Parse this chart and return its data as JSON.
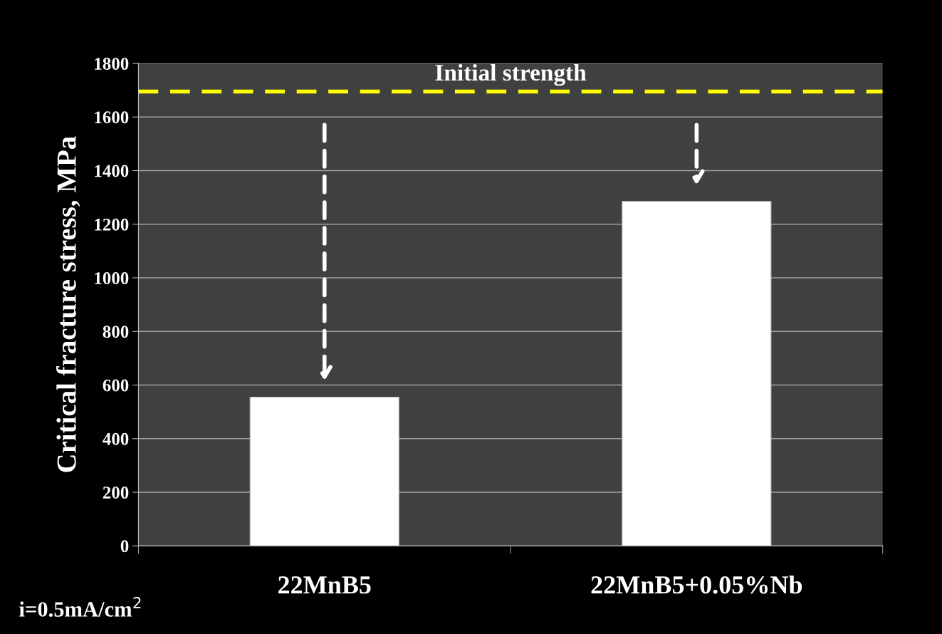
{
  "chart_data": {
    "type": "bar",
    "ylabel": "Critical fracture stress, MPa",
    "categories": [
      "22MnB5",
      "22MnB5+0.05%Nb"
    ],
    "values": [
      555,
      1285
    ],
    "color": "#ffffff",
    "ylim": [
      0,
      1800
    ],
    "yticks": [
      0,
      200,
      400,
      600,
      800,
      1000,
      1200,
      1400,
      1600,
      1800
    ],
    "grid": "y",
    "ref_lines": [
      {
        "axis": "y",
        "value": 1695,
        "label": "Initial strength",
        "color": "#ffff00",
        "line_style": "dashed"
      }
    ],
    "annotations": [
      "i=0.5mA/cm$^{2}$"
    ]
  }
}
